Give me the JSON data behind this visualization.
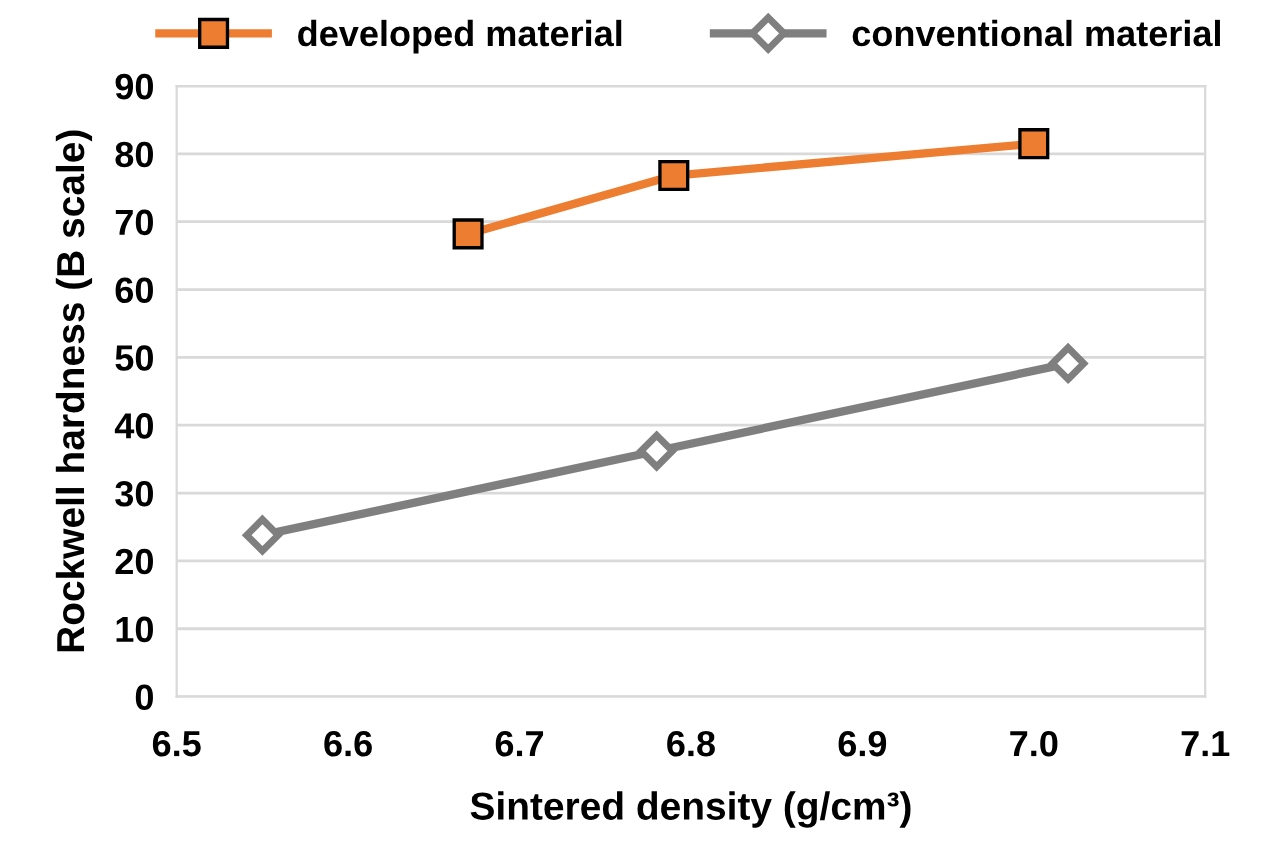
{
  "chart_data": {
    "type": "line",
    "xlabel": "Sintered density (g/cm³)",
    "ylabel": "Rockwell hardness (B scale)",
    "series": [
      {
        "name": "developed material",
        "color": "#ed7d31",
        "marker": "square",
        "x": [
          6.67,
          6.79,
          7.0
        ],
        "values": [
          68.2,
          76.8,
          81.5
        ]
      },
      {
        "name": "conventional material",
        "color": "#7f7f7f",
        "marker": "diamond",
        "x": [
          6.55,
          6.78,
          7.02
        ],
        "values": [
          23.8,
          36.2,
          49.1
        ]
      }
    ],
    "xlim": [
      6.5,
      7.1
    ],
    "xticks": [
      {
        "value": 6.5,
        "label": "6.5"
      },
      {
        "value": 6.6,
        "label": "6.6"
      },
      {
        "value": 6.7,
        "label": "6.7"
      },
      {
        "value": 6.8,
        "label": "6.8"
      },
      {
        "value": 6.9,
        "label": "6.9"
      },
      {
        "value": 7.0,
        "label": "7.0"
      },
      {
        "value": 7.1,
        "label": "7.1"
      }
    ],
    "ylim": [
      0,
      90
    ],
    "yticks": [
      0,
      10,
      20,
      30,
      40,
      50,
      60,
      70,
      80,
      90
    ],
    "grid": "y",
    "legend": "top",
    "line_style": "solid"
  }
}
